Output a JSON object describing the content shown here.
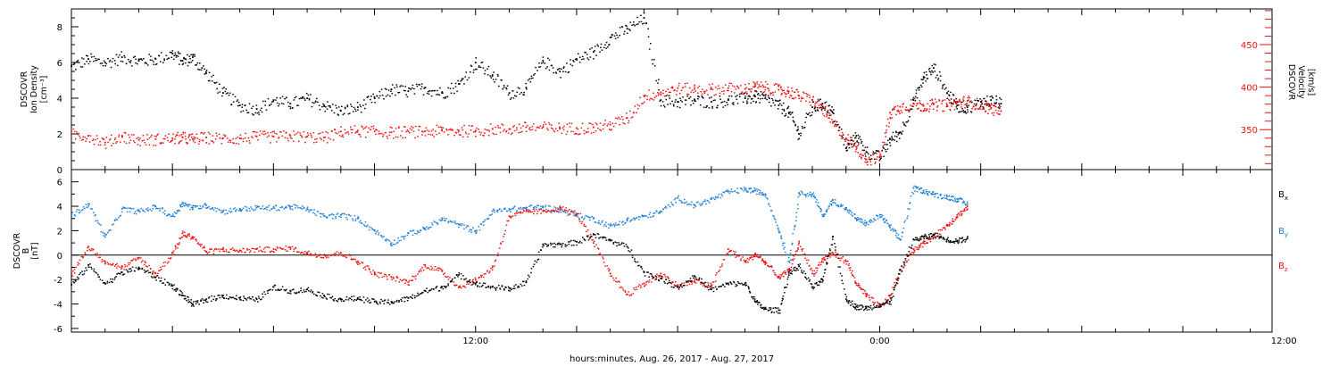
{
  "colors": {
    "black": "#000000",
    "blue": "#1f7fd8",
    "red": "#ee1111"
  },
  "xaxis": {
    "title": "hours:minutes, Aug. 26, 2017 - Aug. 27, 2017",
    "hour_min": 0.0,
    "hour_max": 35.65,
    "labels": [
      {
        "hour": 12,
        "text": "12:00"
      },
      {
        "hour": 24,
        "text": "0:00"
      },
      {
        "hour": 36,
        "text": "12:00"
      }
    ]
  },
  "panels": {
    "top": {
      "left_label": [
        "DSCOVR",
        "Ion Density",
        "[cm⁻³]"
      ],
      "right_label": [
        "DSCOVR",
        "Velocity",
        "[km/s]"
      ],
      "left_ylim": [
        0,
        9
      ],
      "left_ticks": [
        0,
        2,
        4,
        6,
        8
      ],
      "right_ylim": [
        303,
        492
      ],
      "right_ticks": [
        350,
        400,
        450
      ]
    },
    "bottom": {
      "left_label": [
        "DSCOVR",
        "B",
        "[nT]"
      ],
      "ylim": [
        -6.3,
        7.0
      ],
      "ticks": [
        -6,
        -4,
        -2,
        0,
        2,
        4,
        6
      ],
      "legend": [
        {
          "base": "B",
          "sub": "x",
          "color": "#000000"
        },
        {
          "base": "B",
          "sub": "y",
          "color": "#1f7fd8"
        },
        {
          "base": "B",
          "sub": "z",
          "color": "#ee1111"
        }
      ]
    }
  },
  "chart_data": [
    {
      "type": "scatter",
      "x_unit": "hours since Aug. 26, 2017 00:00",
      "series": [
        {
          "axis": "left",
          "units": "cm-3",
          "color": "#000000",
          "x": [
            0.0,
            0.5,
            1.0,
            1.5,
            2.0,
            2.5,
            3.0,
            3.3,
            3.6,
            4.0,
            4.5,
            5.0,
            5.5,
            6.0,
            6.5,
            7.0,
            7.5,
            8.0,
            8.5,
            9.0,
            9.5,
            10.0,
            10.5,
            11.0,
            11.5,
            12.0,
            12.5,
            13.0,
            13.5,
            14.0,
            14.5,
            15.0,
            15.5,
            16.0,
            16.5,
            17.0,
            17.5,
            18.0,
            18.5,
            19.0,
            19.5,
            20.0,
            20.3,
            20.6,
            21.0,
            21.3,
            21.6,
            22.0,
            22.3,
            22.6,
            23.0,
            23.3,
            23.6,
            24.0,
            24.3,
            24.6,
            25.0,
            25.3,
            25.6,
            26.0,
            26.3,
            26.6,
            27.0,
            27.3,
            27.6,
            28.0,
            28.3,
            28.6,
            29.0,
            29.3,
            29.6,
            30.0,
            30.3,
            30.6,
            31.0,
            31.3,
            31.6,
            32.0,
            32.3,
            32.6,
            33.0,
            33.3,
            33.6,
            34.0,
            34.3,
            34.6,
            35.0,
            35.3,
            35.6
          ],
          "y": [
            5.8,
            6.2,
            6.0,
            6.3,
            6.1,
            6.2,
            6.5,
            6.1,
            6.3,
            5.4,
            4.3,
            3.6,
            3.4,
            3.9,
            3.7,
            4.0,
            3.6,
            3.3,
            3.5,
            4.0,
            4.5,
            4.4,
            4.6,
            4.3,
            4.8,
            6.0,
            5.3,
            4.3,
            4.6,
            6.1,
            5.5,
            6.2,
            6.6,
            7.4,
            7.9,
            8.5,
            3.9,
            3.8,
            3.9,
            3.8,
            3.9,
            4.0,
            4.1,
            4.0,
            3.6,
            3.2,
            2.0,
            3.5,
            3.7,
            3.2,
            1.2,
            1.9,
            1.0,
            0.7,
            1.7,
            2.1,
            3.9,
            5.2,
            5.7,
            4.3,
            3.6,
            3.5,
            3.8,
            3.9,
            3.7,
            null,
            null,
            null,
            null,
            null,
            null,
            null,
            null,
            null,
            null,
            null,
            null,
            null,
            null,
            null,
            null,
            null,
            null,
            null,
            null,
            null,
            null,
            null,
            null
          ]
        },
        {
          "axis": "right",
          "units": "km/s",
          "color": "#ee1111",
          "x": [
            0.0,
            0.5,
            1.0,
            1.5,
            2.0,
            2.5,
            3.0,
            3.3,
            3.6,
            4.0,
            4.5,
            5.0,
            5.5,
            6.0,
            6.5,
            7.0,
            7.5,
            8.0,
            8.5,
            9.0,
            9.5,
            10.0,
            10.5,
            11.0,
            11.5,
            12.0,
            12.5,
            13.0,
            13.5,
            14.0,
            14.5,
            15.0,
            15.5,
            16.0,
            16.5,
            17.0,
            17.5,
            18.0,
            18.5,
            19.0,
            19.5,
            20.0,
            20.3,
            20.6,
            21.0,
            21.3,
            21.6,
            22.0,
            22.3,
            22.6,
            23.0,
            23.3,
            23.6,
            24.0,
            24.3,
            24.6,
            25.0,
            25.3,
            25.6,
            26.0,
            26.3,
            26.6,
            27.0,
            27.3,
            27.6,
            28.0,
            28.3,
            28.6,
            29.0,
            29.3,
            29.6,
            30.0,
            30.3,
            30.6,
            31.0,
            31.3,
            31.6,
            32.0,
            32.3,
            32.6,
            33.0,
            33.3,
            33.6,
            34.0,
            34.3,
            34.6,
            35.0,
            35.3,
            35.6
          ],
          "y": [
            345,
            343,
            335,
            343,
            338,
            339,
            340,
            341,
            339,
            341,
            340,
            340,
            342,
            342,
            343,
            342,
            341,
            348,
            349,
            348,
            347,
            348,
            348,
            349,
            349,
            349,
            351,
            351,
            353,
            353,
            352,
            352,
            353,
            356,
            364,
            390,
            394,
            399,
            398,
            398,
            399,
            398,
            401,
            400,
            397,
            395,
            390,
            385,
            375,
            358,
            340,
            330,
            315,
            318,
            370,
            377,
            381,
            378,
            380,
            379,
            382,
            384,
            379,
            375,
            372,
            null,
            null,
            null,
            null,
            null,
            null,
            null,
            null,
            null,
            null,
            null,
            null,
            null,
            null,
            null,
            null,
            null,
            null,
            null,
            null,
            null,
            null,
            null,
            null
          ]
        }
      ]
    },
    {
      "type": "scatter",
      "x_unit": "hours since Aug. 26, 2017 00:00",
      "ylabel": "B [nT]",
      "series": [
        {
          "name": "Bx",
          "color": "#000000",
          "x": [
            0.0,
            0.5,
            1.0,
            1.5,
            2.0,
            2.5,
            3.0,
            3.3,
            3.6,
            4.0,
            4.5,
            5.0,
            5.5,
            6.0,
            6.5,
            7.0,
            7.5,
            8.0,
            8.5,
            9.0,
            9.5,
            10.0,
            10.5,
            11.0,
            11.5,
            12.0,
            12.5,
            13.0,
            13.5,
            14.0,
            14.5,
            15.0,
            15.5,
            16.0,
            16.5,
            17.0,
            17.5,
            18.0,
            18.5,
            19.0,
            19.5,
            20.0,
            20.3,
            20.6,
            21.0,
            21.3,
            21.6,
            22.0,
            22.3,
            22.6,
            23.0,
            23.3,
            23.6,
            24.0,
            24.3,
            24.6,
            25.0,
            25.3,
            25.6,
            26.0,
            26.3,
            26.6,
            27.0,
            27.3,
            27.6,
            28.0,
            28.3,
            28.6,
            29.0,
            29.3,
            29.6,
            30.0,
            30.3,
            30.6,
            31.0,
            31.3,
            31.6,
            32.0,
            32.3,
            32.6,
            33.0,
            33.3,
            33.6,
            34.0,
            34.3,
            34.6,
            35.0,
            35.3,
            35.6
          ],
          "y": [
            -2.4,
            -0.8,
            -2.3,
            -1.4,
            -1.0,
            -1.8,
            -2.5,
            -3.3,
            -4.0,
            -3.6,
            -3.3,
            -3.5,
            -3.6,
            -2.6,
            -2.9,
            -2.8,
            -3.3,
            -3.6,
            -3.5,
            -3.8,
            -3.8,
            -3.5,
            -2.9,
            -2.6,
            -1.6,
            -2.3,
            -2.6,
            -2.7,
            -2.2,
            0.9,
            0.9,
            1.1,
            1.7,
            1.2,
            0.7,
            -1.4,
            -1.9,
            -2.6,
            -1.7,
            -2.8,
            -2.3,
            -2.3,
            -3.8,
            -4.4,
            -4.5,
            -1.4,
            -0.9,
            -2.6,
            -2.0,
            1.5,
            -3.6,
            -4.2,
            -4.3,
            -4.0,
            -3.8,
            -1.2,
            1.3,
            1.5,
            1.7,
            1.3,
            1.2,
            1.4,
            null,
            null,
            null,
            null,
            null,
            null,
            null,
            null,
            null,
            null,
            null,
            null,
            null,
            null,
            null,
            null,
            null,
            null,
            null,
            null,
            null,
            null,
            null,
            null,
            null,
            null,
            null
          ]
        },
        {
          "name": "By",
          "color": "#1f7fd8",
          "x": [
            0.0,
            0.5,
            1.0,
            1.5,
            2.0,
            2.5,
            3.0,
            3.3,
            3.6,
            4.0,
            4.5,
            5.0,
            5.5,
            6.0,
            6.5,
            7.0,
            7.5,
            8.0,
            8.5,
            9.0,
            9.5,
            10.0,
            10.5,
            11.0,
            11.5,
            12.0,
            12.5,
            13.0,
            13.5,
            14.0,
            14.5,
            15.0,
            15.5,
            16.0,
            16.5,
            17.0,
            17.5,
            18.0,
            18.5,
            19.0,
            19.5,
            20.0,
            20.3,
            20.6,
            21.0,
            21.3,
            21.6,
            22.0,
            22.3,
            22.6,
            23.0,
            23.3,
            23.6,
            24.0,
            24.3,
            24.6,
            25.0,
            25.3,
            25.6,
            26.0,
            26.3,
            26.6,
            27.0,
            27.3,
            27.6,
            28.0,
            28.3,
            28.6,
            29.0,
            29.3,
            29.6,
            30.0,
            30.3,
            30.6,
            31.0,
            31.3,
            31.6,
            32.0,
            32.3,
            32.6,
            33.0,
            33.3,
            33.6,
            34.0,
            34.3,
            34.6,
            35.0,
            35.3,
            35.6
          ],
          "y": [
            3.3,
            4.2,
            1.5,
            3.8,
            3.6,
            4.0,
            3.2,
            4.3,
            3.9,
            4.1,
            3.6,
            3.8,
            3.9,
            3.9,
            4.0,
            3.8,
            3.2,
            3.3,
            3.0,
            2.0,
            1.0,
            1.8,
            2.2,
            3.0,
            2.5,
            2.0,
            3.6,
            3.8,
            3.9,
            4.0,
            3.7,
            3.3,
            3.0,
            2.4,
            2.9,
            3.2,
            3.6,
            4.7,
            4.1,
            4.6,
            5.2,
            5.4,
            5.3,
            5.0,
            2.0,
            -0.5,
            5.1,
            5.0,
            3.3,
            4.5,
            3.8,
            3.0,
            2.6,
            3.3,
            2.3,
            1.3,
            5.5,
            5.3,
            5.0,
            4.8,
            4.6,
            4.2,
            null,
            null,
            null,
            null,
            null,
            null,
            null,
            null,
            null,
            null,
            null,
            null,
            null,
            null,
            null,
            null,
            null,
            null,
            null,
            null,
            null,
            null,
            null,
            null,
            null,
            null,
            null
          ]
        },
        {
          "name": "Bz",
          "color": "#ee1111",
          "x": [
            0.0,
            0.5,
            1.0,
            1.5,
            2.0,
            2.5,
            3.0,
            3.3,
            3.6,
            4.0,
            4.5,
            5.0,
            5.5,
            6.0,
            6.5,
            7.0,
            7.5,
            8.0,
            8.5,
            9.0,
            9.5,
            10.0,
            10.5,
            11.0,
            11.5,
            12.0,
            12.5,
            13.0,
            13.5,
            14.0,
            14.5,
            15.0,
            15.5,
            16.0,
            16.5,
            17.0,
            17.5,
            18.0,
            18.5,
            19.0,
            19.5,
            20.0,
            20.3,
            20.6,
            21.0,
            21.3,
            21.6,
            22.0,
            22.3,
            22.6,
            23.0,
            23.3,
            23.6,
            24.0,
            24.3,
            24.6,
            25.0,
            25.3,
            25.6,
            26.0,
            26.3,
            26.6,
            27.0,
            27.3,
            27.6,
            28.0,
            28.3,
            28.6,
            29.0,
            29.3,
            29.6,
            30.0,
            30.3,
            30.6,
            31.0,
            31.3,
            31.6,
            32.0,
            32.3,
            32.6,
            33.0,
            33.3,
            33.6,
            34.0,
            34.3,
            34.6,
            35.0,
            35.3,
            35.6
          ],
          "y": [
            -1.5,
            0.7,
            -0.5,
            -1.0,
            -0.2,
            -1.5,
            0.2,
            1.8,
            1.5,
            0.3,
            0.5,
            0.4,
            0.5,
            0.5,
            0.6,
            0.2,
            0.0,
            0.2,
            -0.5,
            -1.5,
            -1.8,
            -2.2,
            -0.8,
            -1.3,
            -2.6,
            -2.0,
            -1.0,
            3.2,
            3.6,
            3.6,
            3.9,
            3.4,
            1.0,
            -1.5,
            -3.2,
            -2.3,
            -1.5,
            -2.5,
            -2.1,
            -2.5,
            0.5,
            -0.5,
            0.1,
            -0.6,
            -1.8,
            -1.2,
            1.0,
            -1.5,
            -0.3,
            0.2,
            -0.5,
            -2.3,
            -3.3,
            -4.2,
            -3.3,
            -1.2,
            0.5,
            1.0,
            1.6,
            2.5,
            3.3,
            4.0,
            null,
            null,
            null,
            null,
            null,
            null,
            null,
            null,
            null,
            null,
            null,
            null,
            null,
            null,
            null,
            null,
            null,
            null,
            null,
            null,
            null,
            null,
            null,
            null,
            null,
            null,
            null
          ]
        }
      ]
    }
  ]
}
